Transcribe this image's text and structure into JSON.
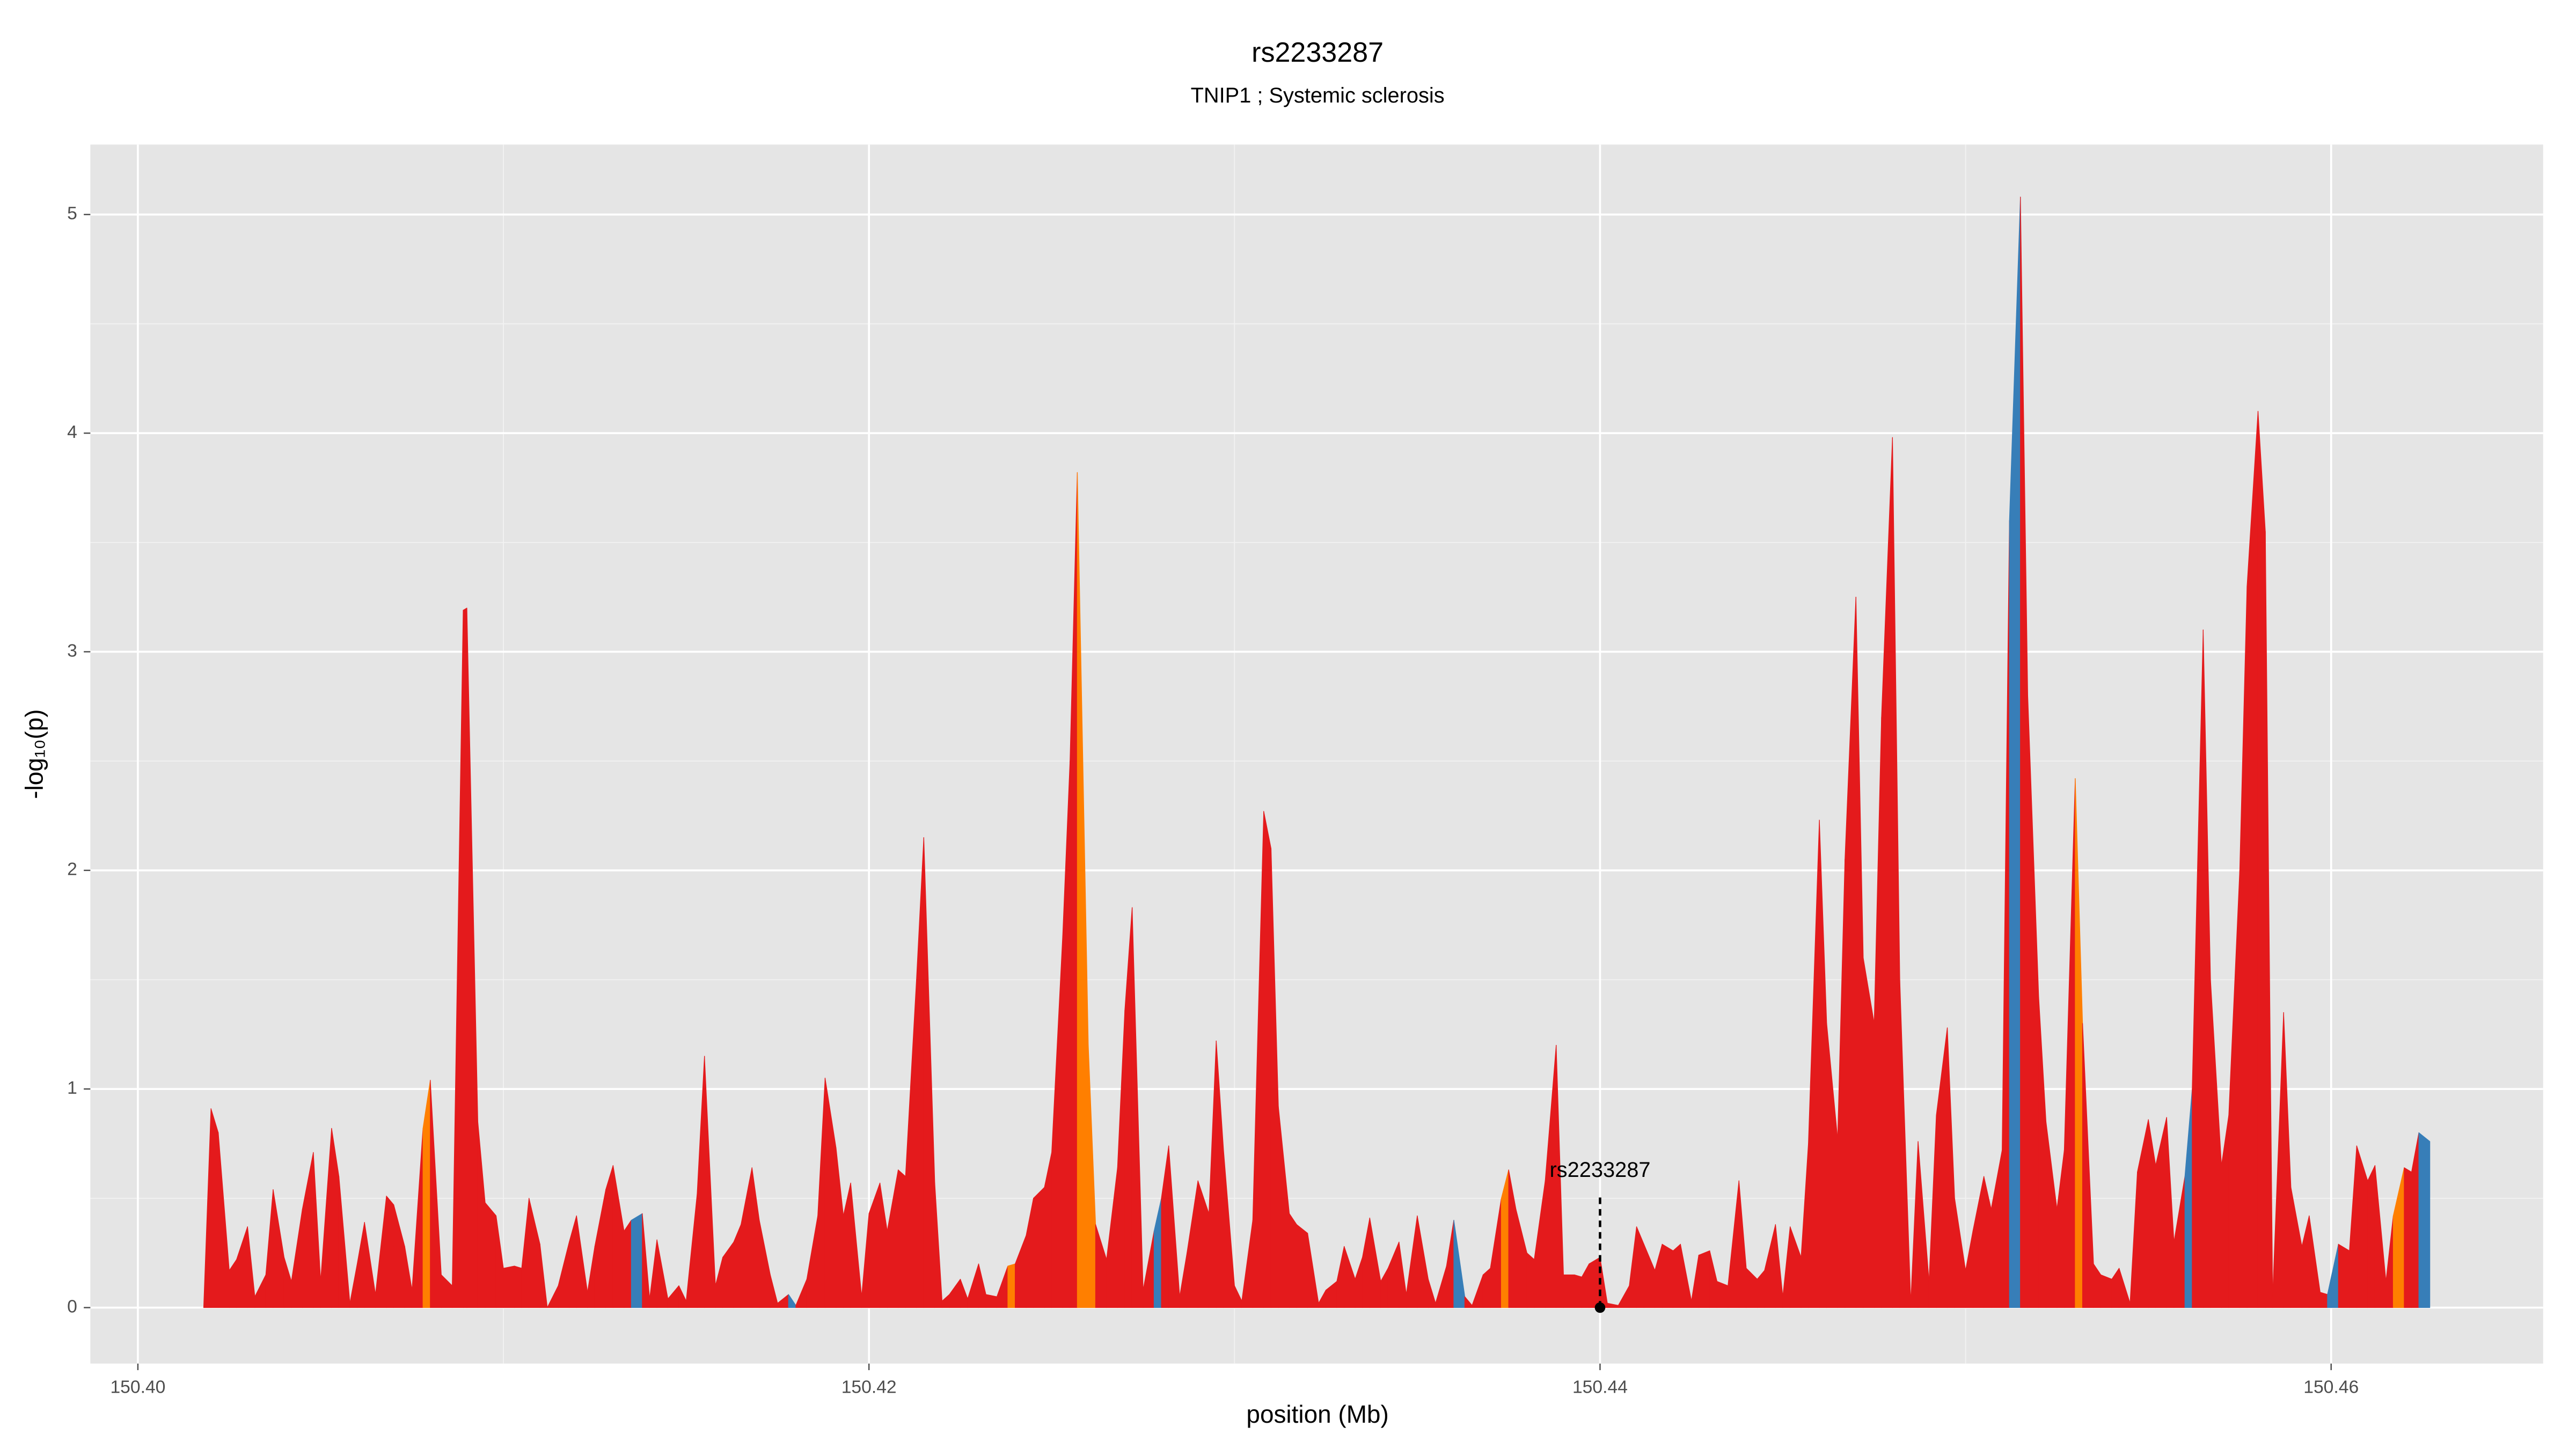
{
  "chart_data": {
    "type": "area",
    "title": "rs2233287",
    "subtitle": "TNIP1 ; Systemic sclerosis",
    "x_label": "position (Mb)",
    "y_label": "-log₁₀(p)",
    "xlim": [
      150.3987,
      150.4658
    ],
    "ylim": [
      -0.256,
      5.32
    ],
    "xticks": [
      {
        "value": 150.4,
        "label": "150.40"
      },
      150.42,
      150.44,
      150.46
    ],
    "yticks": [
      0,
      1,
      2,
      3,
      4,
      5
    ],
    "grid": true,
    "annotation": {
      "label": "rs2233287",
      "x": 150.44,
      "y": 0
    },
    "series": [
      {
        "x": [
          150.4018,
          150.402,
          150.4022,
          150.4025,
          150.4027,
          150.403,
          150.4032,
          150.4035,
          150.4037,
          150.404,
          150.4042,
          150.4045,
          150.4048,
          150.405,
          150.4053,
          150.4055,
          150.4058,
          150.406,
          150.4062,
          150.4065,
          150.4068,
          150.407,
          150.4073,
          150.4075,
          150.4078,
          150.408,
          150.4083,
          150.4086,
          150.4089,
          150.409,
          150.4093,
          150.4095,
          150.4098,
          150.41,
          150.4103,
          150.4105,
          150.4107,
          150.411,
          150.4112,
          150.4115,
          150.4118,
          150.412,
          150.4123,
          150.4125,
          150.4128,
          150.413,
          150.4133,
          150.4135,
          150.4138,
          150.414,
          150.4142,
          150.4145,
          150.4148,
          150.415,
          150.4153,
          150.4155,
          150.4158,
          150.416,
          150.4163,
          150.4165,
          150.4168,
          150.417,
          150.4173,
          150.4175,
          150.4178,
          150.418,
          150.4183,
          150.4186,
          150.4188,
          150.4191,
          150.4193,
          150.4195,
          150.4198,
          150.42,
          150.4203,
          150.4205,
          150.4208,
          150.421,
          150.4213,
          150.4215,
          150.4218,
          150.422,
          150.4222,
          150.4225,
          150.4227,
          150.423,
          150.4232,
          150.4235,
          150.4238,
          150.424,
          150.4243,
          150.4245,
          150.4248,
          150.425,
          150.4253,
          150.4255,
          150.4257,
          150.426,
          150.4262,
          150.4265,
          150.4268,
          150.427,
          150.4272,
          150.4275,
          150.4278,
          150.428,
          150.4282,
          150.4285,
          150.4287,
          150.429,
          150.4293,
          150.4295,
          150.4297,
          150.43,
          150.4302,
          150.4305,
          150.4308,
          150.431,
          150.4312,
          150.4315,
          150.4317,
          150.432,
          150.4323,
          150.4325,
          150.4328,
          150.433,
          150.4333,
          150.4335,
          150.4337,
          150.434,
          150.4342,
          150.4345,
          150.4347,
          150.435,
          150.4353,
          150.4355,
          150.4358,
          150.436,
          150.4363,
          150.4365,
          150.4368,
          150.437,
          150.4373,
          150.4375,
          150.4377,
          150.438,
          150.4382,
          150.4385,
          150.4388,
          150.439,
          150.4393,
          150.4395,
          150.4397,
          150.44,
          150.4402,
          150.4405,
          150.4408,
          150.441,
          150.4412,
          150.4415,
          150.4417,
          150.442,
          150.4422,
          150.4425,
          150.4427,
          150.443,
          150.4432,
          150.4435,
          150.4438,
          150.444,
          150.4443,
          150.4445,
          150.4448,
          150.445,
          150.4452,
          150.4455,
          150.4457,
          150.446,
          150.4462,
          150.4465,
          150.4467,
          150.447,
          150.4472,
          150.4475,
          150.4477,
          150.448,
          150.4482,
          150.4485,
          150.4487,
          150.449,
          150.4492,
          150.4495,
          150.4497,
          150.45,
          150.4502,
          150.4505,
          150.4507,
          150.451,
          150.4512,
          150.4515,
          150.4517,
          150.452,
          150.4522,
          150.4525,
          150.4527,
          150.453,
          150.4532,
          150.4535,
          150.4537,
          150.454,
          150.4542,
          150.4545,
          150.4547,
          150.455,
          150.4552,
          150.4555,
          150.4557,
          150.456,
          150.4562,
          150.4565,
          150.4567,
          150.457,
          150.4572,
          150.4575,
          150.4577,
          150.458,
          150.4582,
          150.4584,
          150.4587,
          150.4589,
          150.4592,
          150.4594,
          150.4597,
          150.4599,
          150.4602,
          150.4605,
          150.4607,
          150.461,
          150.4612,
          150.4615,
          150.4617,
          150.462,
          150.4622,
          150.4624,
          150.4627
        ],
        "values": [
          0,
          0.91,
          0.8,
          0.17,
          0.22,
          0.37,
          0.05,
          0.15,
          0.54,
          0.23,
          0.12,
          0.45,
          0.71,
          0.12,
          0.82,
          0.6,
          0.02,
          0.2,
          0.39,
          0.06,
          0.51,
          0.47,
          0.28,
          0.08,
          0.82,
          1.04,
          0.15,
          0.1,
          3.19,
          3.2,
          0.85,
          0.48,
          0.42,
          0.18,
          0.19,
          0.18,
          0.5,
          0.29,
          0,
          0.1,
          0.3,
          0.42,
          0.07,
          0.28,
          0.54,
          0.65,
          0.35,
          0.4,
          0.43,
          0.04,
          0.31,
          0.04,
          0.1,
          0.03,
          0.52,
          1.15,
          0.1,
          0.23,
          0.3,
          0.38,
          0.64,
          0.4,
          0.15,
          0.02,
          0.06,
          0.01,
          0.13,
          0.42,
          1.05,
          0.73,
          0.42,
          0.57,
          0.05,
          0.43,
          0.57,
          0.35,
          0.63,
          0.6,
          1.5,
          2.15,
          0.57,
          0.03,
          0.06,
          0.13,
          0.04,
          0.2,
          0.06,
          0.05,
          0.19,
          0.2,
          0.33,
          0.5,
          0.55,
          0.71,
          1.7,
          2.5,
          3.82,
          1.2,
          0.38,
          0.22,
          0.64,
          1.36,
          1.83,
          0.08,
          0.35,
          0.5,
          0.74,
          0.05,
          0.25,
          0.58,
          0.43,
          1.22,
          0.72,
          0.1,
          0.03,
          0.4,
          2.27,
          2.1,
          0.92,
          0.43,
          0.38,
          0.34,
          0.02,
          0.08,
          0.12,
          0.28,
          0.13,
          0.23,
          0.41,
          0.12,
          0.18,
          0.3,
          0.06,
          0.42,
          0.13,
          0.02,
          0.19,
          0.4,
          0.05,
          0.01,
          0.15,
          0.18,
          0.5,
          0.63,
          0.45,
          0.25,
          0.22,
          0.58,
          1.2,
          0.15,
          0.15,
          0.14,
          0.2,
          0.23,
          0.02,
          0.01,
          0.1,
          0.37,
          0.29,
          0.17,
          0.29,
          0.26,
          0.29,
          0.03,
          0.24,
          0.26,
          0.12,
          0.1,
          0.58,
          0.18,
          0.13,
          0.17,
          0.38,
          0.05,
          0.37,
          0.23,
          0.75,
          2.23,
          1.3,
          0.77,
          2.05,
          3.25,
          1.6,
          1.3,
          2.7,
          3.98,
          1.5,
          0.02,
          0.76,
          0.12,
          0.88,
          1.28,
          0.5,
          0.17,
          0.35,
          0.6,
          0.45,
          0.72,
          3.6,
          5.08,
          2.8,
          1.42,
          0.85,
          0.45,
          0.72,
          2.42,
          1.3,
          0.2,
          0.15,
          0.13,
          0.18,
          0.02,
          0.62,
          0.86,
          0.65,
          0.87,
          0.3,
          0.6,
          1.0,
          3.1,
          1.5,
          0.65,
          0.88,
          2.0,
          3.3,
          4.1,
          3.55,
          0.05,
          1.35,
          0.55,
          0.28,
          0.42,
          0.07,
          0.06,
          0.29,
          0.26,
          0.74,
          0.58,
          0.65,
          0.12,
          0.42,
          0.64,
          0.62,
          0.8,
          0.76
        ],
        "colors": [
          "#e41a1c",
          "#e41a1c",
          "#e41a1c",
          "#e41a1c",
          "#e41a1c",
          "#e41a1c",
          "#e41a1c",
          "#e41a1c",
          "#e41a1c",
          "#e41a1c",
          "#e41a1c",
          "#e41a1c",
          "#e41a1c",
          "#e41a1c",
          "#e41a1c",
          "#e41a1c",
          "#e41a1c",
          "#e41a1c",
          "#e41a1c",
          "#e41a1c",
          "#e41a1c",
          "#e41a1c",
          "#e41a1c",
          "#e41a1c",
          "#ff7f00",
          "#e41a1c",
          "#e41a1c",
          "#e41a1c",
          "#e41a1c",
          "#e41a1c",
          "#e41a1c",
          "#e41a1c",
          "#e41a1c",
          "#e41a1c",
          "#e41a1c",
          "#e41a1c",
          "#e41a1c",
          "#e41a1c",
          "#e41a1c",
          "#e41a1c",
          "#e41a1c",
          "#e41a1c",
          "#e41a1c",
          "#e41a1c",
          "#e41a1c",
          "#e41a1c",
          "#e41a1c",
          "#377eb8",
          "#e41a1c",
          "#e41a1c",
          "#e41a1c",
          "#e41a1c",
          "#e41a1c",
          "#e41a1c",
          "#e41a1c",
          "#e41a1c",
          "#e41a1c",
          "#e41a1c",
          "#e41a1c",
          "#e41a1c",
          "#e41a1c",
          "#e41a1c",
          "#e41a1c",
          "#e41a1c",
          "#377eb8",
          "#e41a1c",
          "#e41a1c",
          "#e41a1c",
          "#e41a1c",
          "#e41a1c",
          "#e41a1c",
          "#e41a1c",
          "#e41a1c",
          "#e41a1c",
          "#e41a1c",
          "#e41a1c",
          "#e41a1c",
          "#e41a1c",
          "#e41a1c",
          "#e41a1c",
          "#e41a1c",
          "#e41a1c",
          "#e41a1c",
          "#e41a1c",
          "#e41a1c",
          "#e41a1c",
          "#e41a1c",
          "#e41a1c",
          "#ff7f00",
          "#e41a1c",
          "#e41a1c",
          "#e41a1c",
          "#e41a1c",
          "#e41a1c",
          "#e41a1c",
          "#e41a1c",
          "#ff7f00",
          "#ff7f00",
          "#e41a1c",
          "#e41a1c",
          "#e41a1c",
          "#e41a1c",
          "#e41a1c",
          "#e41a1c",
          "#377eb8",
          "#e41a1c",
          "#e41a1c",
          "#e41a1c",
          "#e41a1c",
          "#e41a1c",
          "#e41a1c",
          "#e41a1c",
          "#e41a1c",
          "#e41a1c",
          "#e41a1c",
          "#e41a1c",
          "#e41a1c",
          "#e41a1c",
          "#e41a1c",
          "#e41a1c",
          "#e41a1c",
          "#e41a1c",
          "#e41a1c",
          "#e41a1c",
          "#e41a1c",
          "#e41a1c",
          "#e41a1c",
          "#e41a1c",
          "#e41a1c",
          "#e41a1c",
          "#e41a1c",
          "#e41a1c",
          "#e41a1c",
          "#e41a1c",
          "#e41a1c",
          "#e41a1c",
          "#e41a1c",
          "#377eb8",
          "#e41a1c",
          "#e41a1c",
          "#e41a1c",
          "#e41a1c",
          "#ff7f00",
          "#e41a1c",
          "#e41a1c",
          "#e41a1c",
          "#e41a1c",
          "#e41a1c",
          "#e41a1c",
          "#e41a1c",
          "#e41a1c",
          "#e41a1c",
          "#e41a1c",
          "#e41a1c",
          "#e41a1c",
          "#e41a1c",
          "#e41a1c",
          "#e41a1c",
          "#e41a1c",
          "#e41a1c",
          "#e41a1c",
          "#e41a1c",
          "#e41a1c",
          "#e41a1c",
          "#e41a1c",
          "#e41a1c",
          "#e41a1c",
          "#e41a1c",
          "#e41a1c",
          "#e41a1c",
          "#e41a1c",
          "#e41a1c",
          "#e41a1c",
          "#e41a1c",
          "#e41a1c",
          "#e41a1c",
          "#e41a1c",
          "#e41a1c",
          "#e41a1c",
          "#e41a1c",
          "#e41a1c",
          "#e41a1c",
          "#e41a1c",
          "#e41a1c",
          "#e41a1c",
          "#e41a1c",
          "#e41a1c",
          "#e41a1c",
          "#e41a1c",
          "#e41a1c",
          "#e41a1c",
          "#e41a1c",
          "#e41a1c",
          "#e41a1c",
          "#e41a1c",
          "#e41a1c",
          "#e41a1c",
          "#e41a1c",
          "#377eb8",
          "#e41a1c",
          "#e41a1c",
          "#e41a1c",
          "#e41a1c",
          "#e41a1c",
          "#e41a1c",
          "#ff7f00",
          "#e41a1c",
          "#e41a1c",
          "#e41a1c",
          "#e41a1c",
          "#e41a1c",
          "#e41a1c",
          "#e41a1c",
          "#e41a1c",
          "#e41a1c",
          "#e41a1c",
          "#e41a1c",
          "#377eb8",
          "#e41a1c",
          "#e41a1c",
          "#e41a1c",
          "#e41a1c",
          "#e41a1c",
          "#e41a1c",
          "#e41a1c",
          "#e41a1c",
          "#e41a1c",
          "#e41a1c",
          "#e41a1c",
          "#e41a1c",
          "#e41a1c",
          "#e41a1c",
          "#e41a1c",
          "#377eb8",
          "#e41a1c",
          "#e41a1c",
          "#e41a1c",
          "#e41a1c",
          "#e41a1c",
          "#e41a1c",
          "#ff7f00",
          "#e41a1c",
          "#e41a1c",
          "#377eb8",
          "#e41a1c"
        ]
      }
    ]
  }
}
